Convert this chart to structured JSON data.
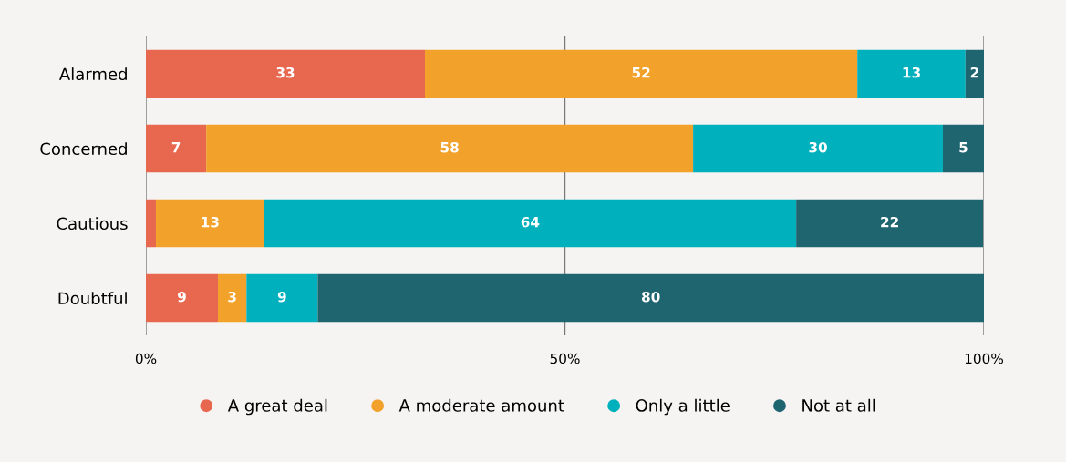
{
  "chart_data": {
    "type": "bar",
    "orientation": "horizontal",
    "stacked": true,
    "categories": [
      "Alarmed",
      "Concerned",
      "Cautious",
      "Doubtful"
    ],
    "series": [
      {
        "name": "A great deal",
        "color": "#e8684f",
        "values": [
          33.3,
          7.2,
          1.2,
          8.6
        ],
        "value_labels": [
          "33",
          "7",
          null,
          "9"
        ]
      },
      {
        "name": "A moderate amount",
        "color": "#f2a22b",
        "values": [
          51.6,
          58.1,
          12.9,
          3.4
        ],
        "value_labels": [
          "52",
          "58",
          "13",
          "3"
        ]
      },
      {
        "name": "Only a little",
        "color": "#00b0bc",
        "values": [
          12.9,
          29.8,
          63.5,
          8.5
        ],
        "value_labels": [
          "13",
          "30",
          "64",
          "9"
        ]
      },
      {
        "name": "Not at all",
        "color": "#1f6570",
        "values": [
          2.2,
          4.9,
          22.3,
          79.5
        ],
        "value_labels": [
          "2",
          "5",
          "22",
          "80"
        ]
      }
    ],
    "xlim": [
      0,
      100
    ],
    "xticks": [
      {
        "value": 0,
        "label": "0%"
      },
      {
        "value": 50,
        "label": "50%"
      },
      {
        "value": 100,
        "label": "100%"
      }
    ],
    "grid": "x",
    "legend": "bottom",
    "marker": "circle"
  }
}
